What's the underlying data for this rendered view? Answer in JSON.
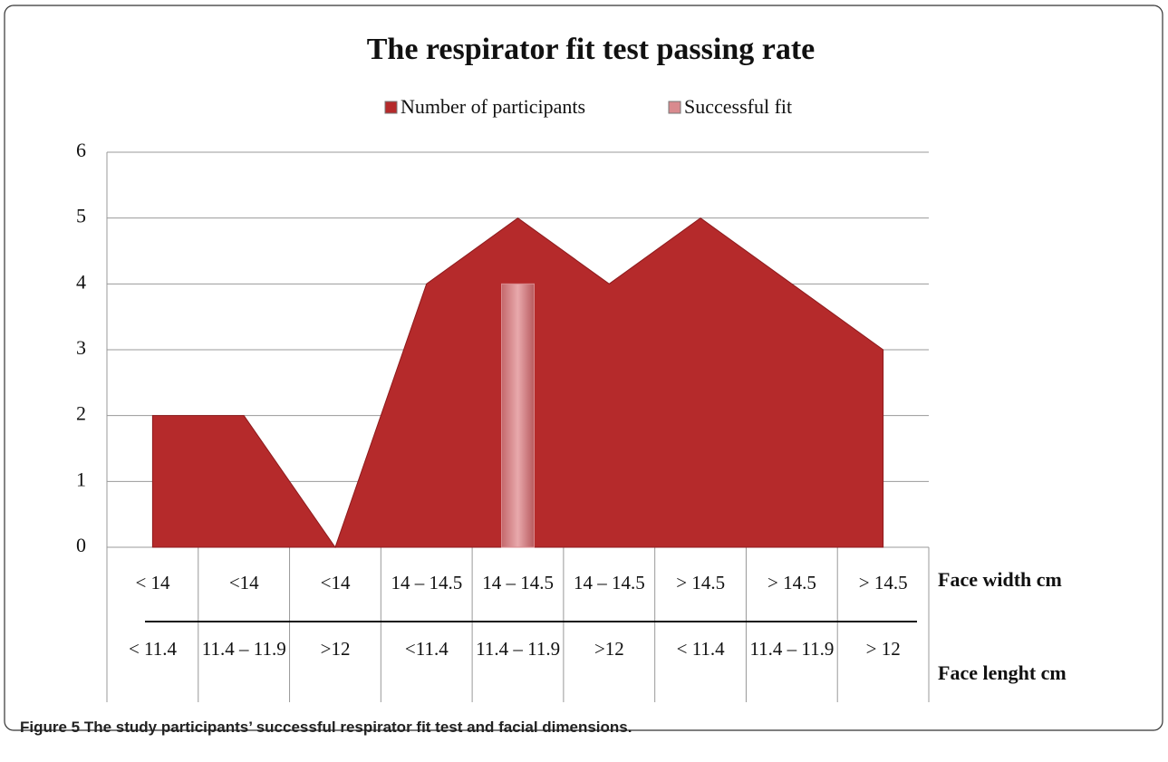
{
  "chart_data": {
    "type": "area",
    "title": "The respirator fit test passing rate",
    "category_levels": [
      {
        "name": "Face width cm",
        "labels": [
          "< 14",
          "<14",
          "<14",
          "14 – 14.5",
          "14 – 14.5",
          "14 – 14.5",
          "> 14.5",
          "> 14.5",
          "> 14.5"
        ]
      },
      {
        "name": "Face lenght cm",
        "labels": [
          "< 11.4",
          "11.4 – 11.9",
          ">12",
          "<11.4",
          "11.4 – 11.9",
          ">12",
          "< 11.4",
          "11.4 – 11.9",
          "> 12"
        ]
      }
    ],
    "series": [
      {
        "name": "Number of participants",
        "type": "area",
        "color": "#b52a2b",
        "values": [
          2,
          2,
          0,
          4,
          5,
          4,
          5,
          4,
          3
        ]
      },
      {
        "name": "Successful fit",
        "type": "bar",
        "color": "#d98a8e",
        "values": [
          0,
          0,
          0,
          0,
          4,
          0,
          0,
          0,
          0
        ]
      }
    ],
    "ylim": [
      0,
      6
    ],
    "yticks": [
      0,
      1,
      2,
      3,
      4,
      5,
      6
    ],
    "grid": true
  },
  "caption": "Figure 5 The study participants’ successful respirator fit test and facial dimensions."
}
